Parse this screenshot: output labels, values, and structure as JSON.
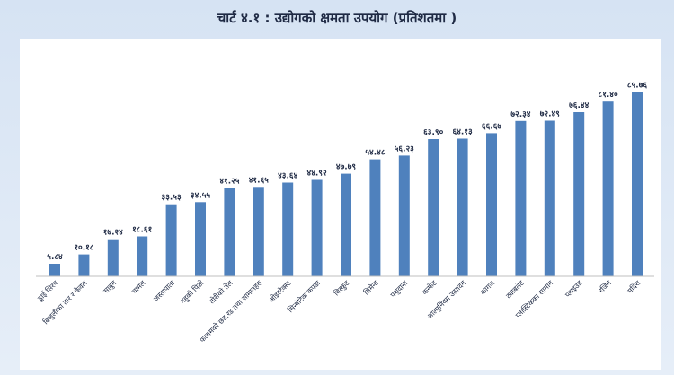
{
  "chart_data": {
    "type": "bar",
    "title": "चार्ट ४.१ : उद्योगको क्षमता उपयोग (प्रतिशतमा )",
    "xlabel": "",
    "ylabel": "",
    "ylim": [
      0,
      100
    ],
    "grid": false,
    "bar_color": "#4f81bd",
    "categories": [
      "डुाई सिरप",
      "बिजुलीका तार र केवल",
      "साबुन",
      "चामल",
      "जस्तापाता",
      "गहुको पिठो",
      "तोरीको तेल",
      "फलामको छड,रड तथा सामानहरु",
      "ओइस्टेक्स्ट",
      "सिन्थेटिक कपडा",
      "बिस्कुट",
      "सिमेन्ट",
      "पशुदाना",
      "कन्फेट",
      "आल्मुनियम उत्पादन",
      "कागज",
      "ट्याबलेट",
      "प्लास्टिकका सामान",
      "प्लाइउड",
      "रजिन",
      "मदिरा"
    ],
    "values": [
      5.84,
      10.18,
      17.24,
      18.61,
      33.53,
      34.55,
      41.25,
      41.65,
      43.64,
      44.92,
      47.79,
      54.48,
      56.23,
      63.9,
      64.13,
      66.67,
      72.34,
      72.49,
      76.44,
      81.4,
      85.76
    ],
    "value_labels": [
      "५.८४",
      "१०.१८",
      "१७.२४",
      "१८.६१",
      "३३.५३",
      "३४.५५",
      "४१.२५",
      "४१.६५",
      "४३.६४",
      "४४.९२",
      "४७.७९",
      "५४.४८",
      "५६.२३",
      "६३.९०",
      "६४.१३",
      "६६.६७",
      "७२.३४",
      "७२.४९",
      "७६.४४",
      "८१.४०",
      "८५.७६"
    ]
  }
}
